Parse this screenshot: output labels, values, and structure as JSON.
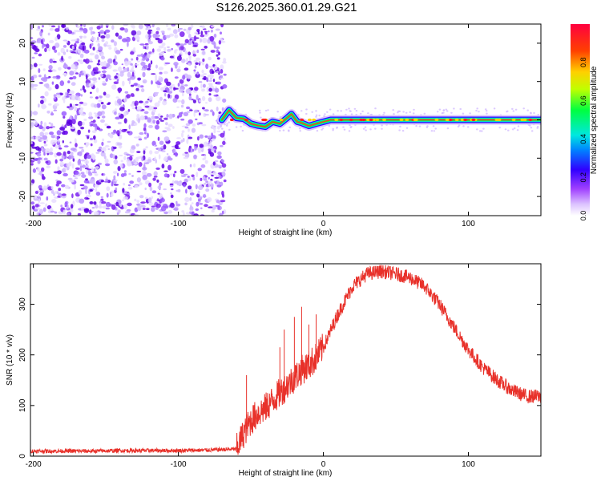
{
  "title": "S126.2025.360.01.29.G21",
  "chart_data": [
    {
      "type": "heatmap",
      "name": "spectrogram",
      "xlabel": "Height of straight line (km)",
      "ylabel": "Frequency (Hz)",
      "xlim": [
        -202,
        150
      ],
      "ylim": [
        -25,
        25
      ],
      "xticks": [
        -200,
        -100,
        0,
        100
      ],
      "xtick_labels": [
        "-200",
        "-100",
        "0",
        "100"
      ],
      "yticks": [
        -20,
        -10,
        0,
        10,
        20
      ],
      "ytick_labels": [
        "-20",
        "-10",
        "0",
        "10",
        "20"
      ],
      "noise_region_x": [
        -202,
        -70
      ],
      "signal_line_start_x": -70,
      "signal_line_frequency": 0,
      "track_points": [
        {
          "x": -70,
          "y": 0
        },
        {
          "x": -65,
          "y": 2.5
        },
        {
          "x": -60,
          "y": 0.5
        },
        {
          "x": -55,
          "y": 0.3
        },
        {
          "x": -50,
          "y": -1
        },
        {
          "x": -45,
          "y": -1.5
        },
        {
          "x": -40,
          "y": -1.8
        },
        {
          "x": -35,
          "y": -0.5
        },
        {
          "x": -30,
          "y": -1
        },
        {
          "x": -25,
          "y": 0.5
        },
        {
          "x": -22,
          "y": 1.5
        },
        {
          "x": -18,
          "y": -0.5
        },
        {
          "x": -15,
          "y": -0.8
        },
        {
          "x": -10,
          "y": -1.6
        },
        {
          "x": -5,
          "y": -1
        },
        {
          "x": 0,
          "y": -0.5
        },
        {
          "x": 5,
          "y": 0
        },
        {
          "x": 150,
          "y": 0
        }
      ],
      "colorbar": {
        "label": "Normalized spectral amplitude",
        "range": [
          0,
          1
        ],
        "ticks": [
          0.0,
          0.2,
          0.4,
          0.6,
          0.8
        ],
        "tick_labels": [
          "0.0",
          "0.2",
          "0.4",
          "0.6",
          "0.8"
        ]
      }
    },
    {
      "type": "line",
      "name": "snr",
      "xlabel": "Height of straight line (km)",
      "ylabel": "SNR (10 * v/v)",
      "xlim": [
        -202,
        150
      ],
      "ylim": [
        0,
        380
      ],
      "xticks": [
        -200,
        -100,
        0,
        100
      ],
      "xtick_labels": [
        "-200",
        "-100",
        "0",
        "100"
      ],
      "yticks": [
        0,
        100,
        200,
        300
      ],
      "ytick_labels": [
        "0",
        "100",
        "200",
        "300"
      ],
      "line_color": "#e8312a",
      "series": [
        {
          "name": "SNR",
          "x": [
            -202,
            -180,
            -160,
            -140,
            -120,
            -100,
            -80,
            -60,
            -55,
            -50,
            -45,
            -40,
            -35,
            -30,
            -25,
            -20,
            -15,
            -10,
            -5,
            0,
            10,
            20,
            30,
            40,
            50,
            60,
            70,
            80,
            90,
            100,
            110,
            120,
            130,
            140,
            150
          ],
          "y": [
            10,
            10,
            10,
            11,
            11,
            11,
            12,
            14,
            45,
            70,
            85,
            95,
            110,
            125,
            140,
            155,
            170,
            180,
            195,
            215,
            280,
            335,
            360,
            365,
            360,
            352,
            335,
            300,
            255,
            210,
            175,
            150,
            130,
            118,
            118
          ]
        }
      ],
      "spikes": [
        {
          "x": -53,
          "y": 160
        },
        {
          "x": -30,
          "y": 215
        },
        {
          "x": -27,
          "y": 250
        },
        {
          "x": -20,
          "y": 275
        },
        {
          "x": -15,
          "y": 295
        },
        {
          "x": -10,
          "y": 260
        },
        {
          "x": -5,
          "y": 280
        }
      ]
    }
  ]
}
